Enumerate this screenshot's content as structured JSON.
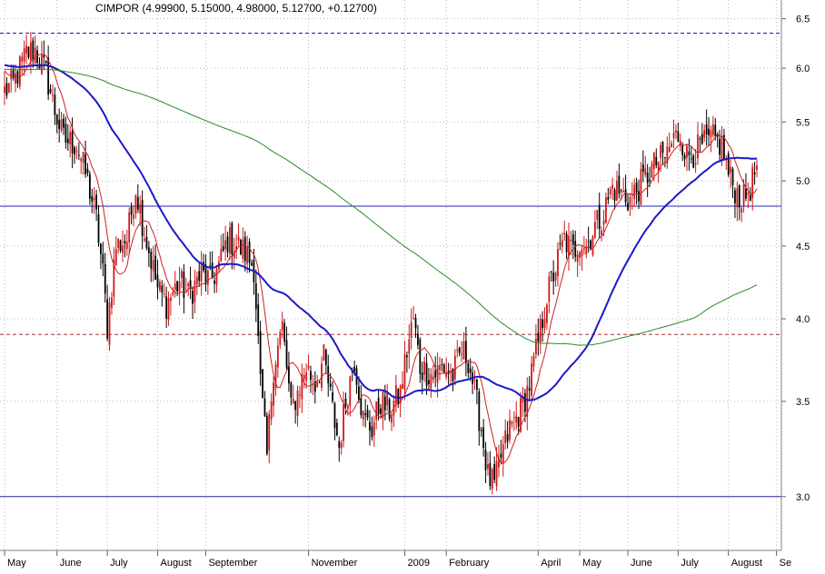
{
  "chart_data": {
    "type": "candlestick",
    "title": "CIMPOR (4.99900, 5.15000, 4.98000, 5.12700, +0.12700)",
    "y_scale": "log",
    "ylim": [
      2.75,
      6.7
    ],
    "y_ticks": [
      "3.0",
      "3.5",
      "4.0",
      "4.5",
      "5.0",
      "5.5",
      "6.0",
      "6.5"
    ],
    "y_tick_values": [
      3.0,
      3.5,
      4.0,
      4.5,
      5.0,
      5.5,
      6.0,
      6.5
    ],
    "x_labels": [
      "May",
      "June",
      "July",
      "August",
      "September",
      "November",
      "2009",
      "February",
      "April",
      "May",
      "June",
      "July",
      "August",
      "Se"
    ],
    "x_label_sessions": [
      0,
      24,
      47,
      70,
      92,
      139,
      183,
      202,
      244,
      263,
      285,
      308,
      331,
      353
    ],
    "n_sessions": 345,
    "grid": true,
    "horizontal_lines": [
      {
        "value": 6.35,
        "color": "#1a1aa8",
        "style": "dashed"
      },
      {
        "value": 4.8,
        "color": "#2424b4",
        "style": "solid"
      },
      {
        "value": 3.9,
        "color": "#a83232",
        "style": "dashed"
      },
      {
        "value": 3.0,
        "color": "#2424b4",
        "style": "solid"
      }
    ],
    "price_anchors": [
      [
        0,
        5.78
      ],
      [
        4,
        5.85
      ],
      [
        10,
        6.15
      ],
      [
        14,
        6.18
      ],
      [
        19,
        5.95
      ],
      [
        23,
        5.6
      ],
      [
        27,
        5.35
      ],
      [
        33,
        5.3
      ],
      [
        38,
        5.0
      ],
      [
        42,
        4.7
      ],
      [
        45,
        4.3
      ],
      [
        47,
        3.95
      ],
      [
        51,
        4.5
      ],
      [
        56,
        4.55
      ],
      [
        60,
        4.95
      ],
      [
        64,
        4.6
      ],
      [
        70,
        4.2
      ],
      [
        74,
        4.1
      ],
      [
        80,
        4.25
      ],
      [
        84,
        4.15
      ],
      [
        90,
        4.3
      ],
      [
        94,
        4.25
      ],
      [
        98,
        4.35
      ],
      [
        102,
        4.55
      ],
      [
        107,
        4.5
      ],
      [
        110,
        4.45
      ],
      [
        114,
        4.35
      ],
      [
        117,
        3.6
      ],
      [
        120,
        3.2
      ],
      [
        123,
        3.7
      ],
      [
        127,
        3.95
      ],
      [
        131,
        3.45
      ],
      [
        134,
        3.55
      ],
      [
        138,
        3.7
      ],
      [
        142,
        3.6
      ],
      [
        146,
        3.75
      ],
      [
        150,
        3.45
      ],
      [
        153,
        3.25
      ],
      [
        156,
        3.5
      ],
      [
        160,
        3.75
      ],
      [
        164,
        3.4
      ],
      [
        168,
        3.35
      ],
      [
        172,
        3.5
      ],
      [
        176,
        3.45
      ],
      [
        181,
        3.55
      ],
      [
        184,
        3.8
      ],
      [
        187,
        4.0
      ],
      [
        190,
        3.7
      ],
      [
        196,
        3.65
      ],
      [
        200,
        3.7
      ],
      [
        205,
        3.65
      ],
      [
        209,
        3.8
      ],
      [
        212,
        3.75
      ],
      [
        215,
        3.55
      ],
      [
        218,
        3.35
      ],
      [
        221,
        3.1
      ],
      [
        224,
        3.05
      ],
      [
        227,
        3.2
      ],
      [
        231,
        3.35
      ],
      [
        236,
        3.45
      ],
      [
        240,
        3.6
      ],
      [
        244,
        3.85
      ],
      [
        248,
        4.15
      ],
      [
        252,
        4.35
      ],
      [
        256,
        4.55
      ],
      [
        260,
        4.45
      ],
      [
        263,
        4.55
      ],
      [
        266,
        4.5
      ],
      [
        270,
        4.65
      ],
      [
        274,
        4.75
      ],
      [
        278,
        4.95
      ],
      [
        282,
        4.9
      ],
      [
        286,
        4.85
      ],
      [
        290,
        4.95
      ],
      [
        294,
        5.05
      ],
      [
        298,
        5.15
      ],
      [
        302,
        5.2
      ],
      [
        306,
        5.35
      ],
      [
        309,
        5.4
      ],
      [
        312,
        5.2
      ],
      [
        316,
        5.25
      ],
      [
        320,
        5.3
      ],
      [
        324,
        5.35
      ],
      [
        328,
        5.3
      ],
      [
        331,
        5.05
      ],
      [
        335,
        4.9
      ],
      [
        338,
        4.85
      ],
      [
        341,
        4.95
      ],
      [
        344,
        5.127
      ]
    ],
    "series": [
      {
        "name": "",
        "kind": "ma",
        "period": 10,
        "color": "#cc2020",
        "width": 1
      },
      {
        "name": "",
        "kind": "ma",
        "period": 50,
        "color": "#1a1ac8",
        "width": 2
      },
      {
        "name": "",
        "kind": "ma",
        "period": 200,
        "color": "#2a8a2a",
        "width": 1
      }
    ],
    "colors": {
      "up": "#d01818",
      "down": "#000000",
      "background": "#ffffff",
      "axis": "#808080",
      "grid": "#b8b8b8",
      "text": "#000000"
    }
  }
}
